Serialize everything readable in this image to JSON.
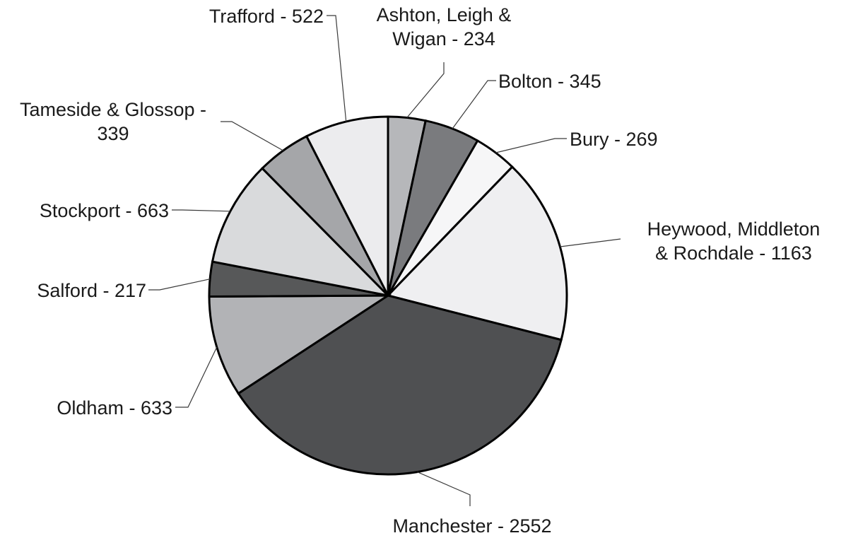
{
  "chart_data": {
    "type": "pie",
    "title": "",
    "start_angle_deg": 0,
    "direction": "clockwise",
    "legend": "none",
    "slices": [
      {
        "label": "Ashton, Leigh & Wigan - 234",
        "label_lines": [
          "Ashton, Leigh &",
          "Wigan - 234"
        ],
        "name": "Ashton, Leigh & Wigan",
        "value": 234,
        "color": "#b6b7ba"
      },
      {
        "label": "Bolton - 345",
        "label_lines": [
          "Bolton - 345"
        ],
        "name": "Bolton",
        "value": 345,
        "color": "#7a7b7e"
      },
      {
        "label": "Bury - 269",
        "label_lines": [
          "Bury - 269"
        ],
        "name": "Bury",
        "value": 269,
        "color": "#f6f6f7"
      },
      {
        "label": "Heywood, Middleton & Rochdale - 1163",
        "label_lines": [
          "Heywood, Middleton",
          "& Rochdale - 1163"
        ],
        "name": "Heywood, Middleton & Rochdale",
        "value": 1163,
        "color": "#efeff1"
      },
      {
        "label": "Manchester - 2552",
        "label_lines": [
          "Manchester - 2552"
        ],
        "name": "Manchester",
        "value": 2552,
        "color": "#4f5052"
      },
      {
        "label": "Oldham - 633",
        "label_lines": [
          "Oldham - 633"
        ],
        "name": "Oldham",
        "value": 633,
        "color": "#b2b3b6"
      },
      {
        "label": "Salford - 217",
        "label_lines": [
          "Salford - 217"
        ],
        "name": "Salford",
        "value": 217,
        "color": "#575859"
      },
      {
        "label": "Stockport - 663",
        "label_lines": [
          "Stockport - 663"
        ],
        "name": "Stockport",
        "value": 663,
        "color": "#d9dadc"
      },
      {
        "label": "Tameside & Glossop - 339",
        "label_lines": [
          "Tameside & Glossop -",
          "339"
        ],
        "name": "Tameside & Glossop",
        "value": 339,
        "color": "#a5a6a9"
      },
      {
        "label": "Trafford - 522",
        "label_lines": [
          "Trafford - 522"
        ],
        "name": "Trafford",
        "value": 522,
        "color": "#ececee"
      }
    ]
  }
}
